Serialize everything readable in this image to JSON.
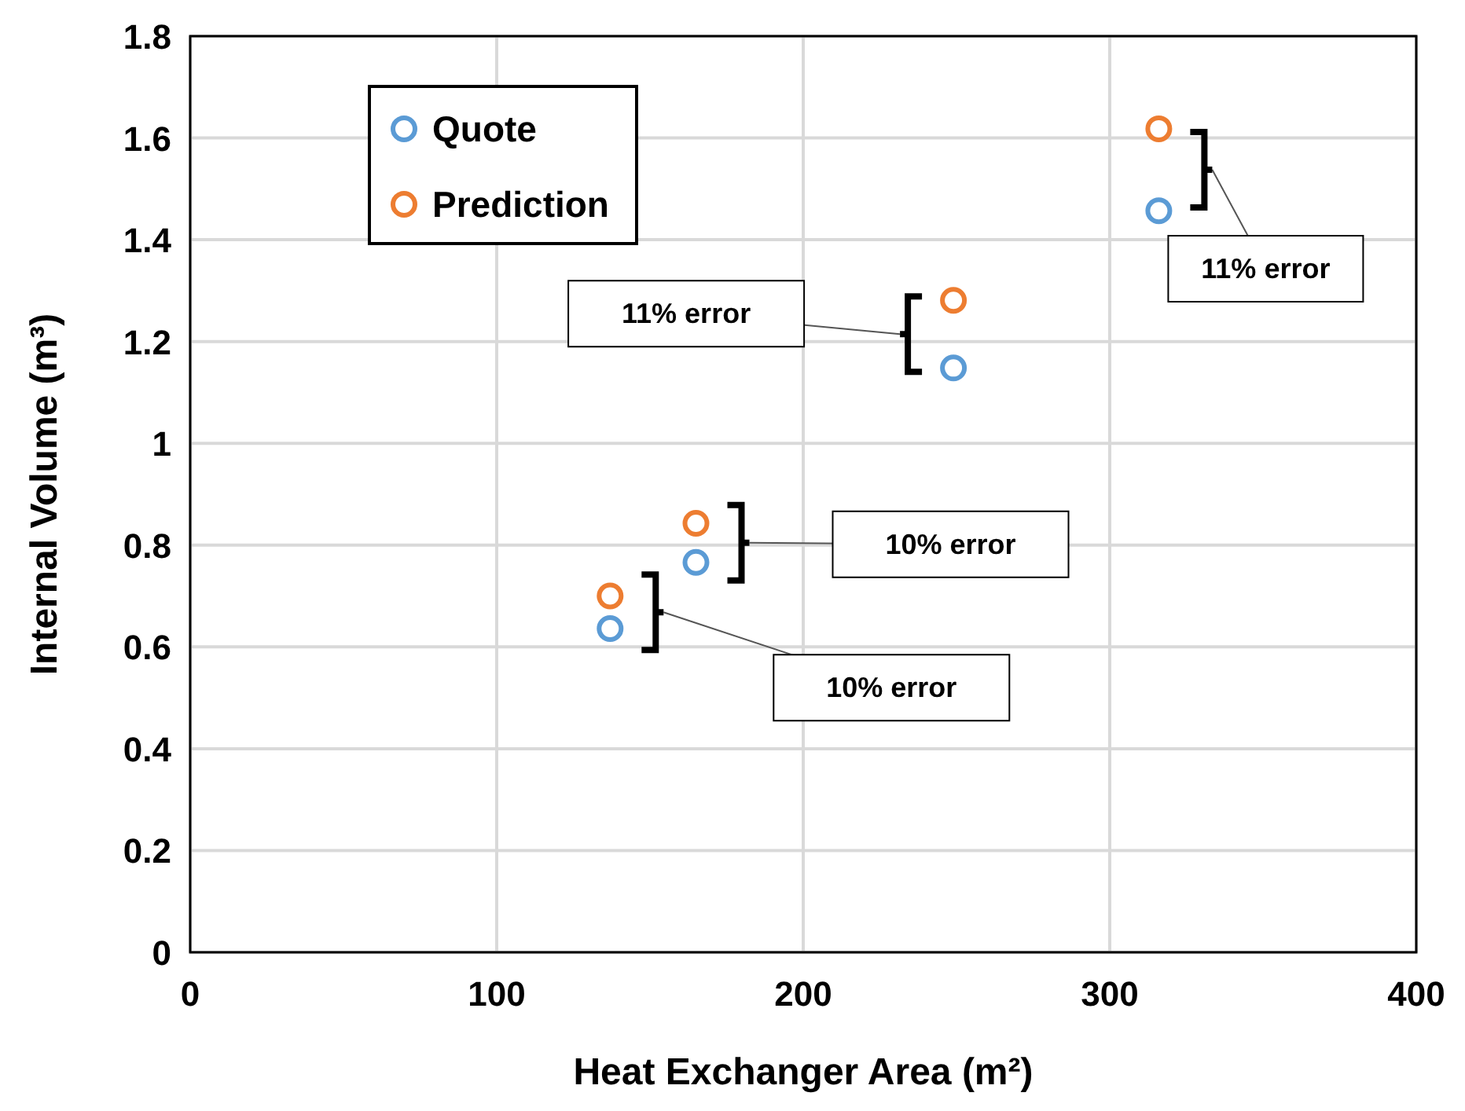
{
  "chart_data": {
    "type": "scatter",
    "xlabel": "Heat Exchanger Area (m²)",
    "ylabel": "Internal Volume (m³)",
    "xlim": [
      0,
      400
    ],
    "xticks": [
      0,
      100,
      200,
      300,
      400
    ],
    "ylim": [
      0,
      1.8
    ],
    "yticks": [
      0,
      0.2,
      0.4,
      0.6,
      0.8,
      1,
      1.2,
      1.4,
      1.6,
      1.8
    ],
    "grid": true,
    "legend": "top left",
    "marker": "circle",
    "series": [
      {
        "name": "Quote",
        "color": "#5b9bd5",
        "x": [
          137,
          165,
          249,
          316
        ],
        "values": [
          0.636,
          0.766,
          1.148,
          1.457
        ]
      },
      {
        "name": "Prediction",
        "color": "#ed7d31",
        "x": [
          137,
          165,
          249,
          316
        ],
        "values": [
          0.7,
          0.843,
          1.281,
          1.618
        ]
      }
    ],
    "annotations": [
      "11% error",
      "11% error",
      "10% error",
      "10% error"
    ]
  }
}
